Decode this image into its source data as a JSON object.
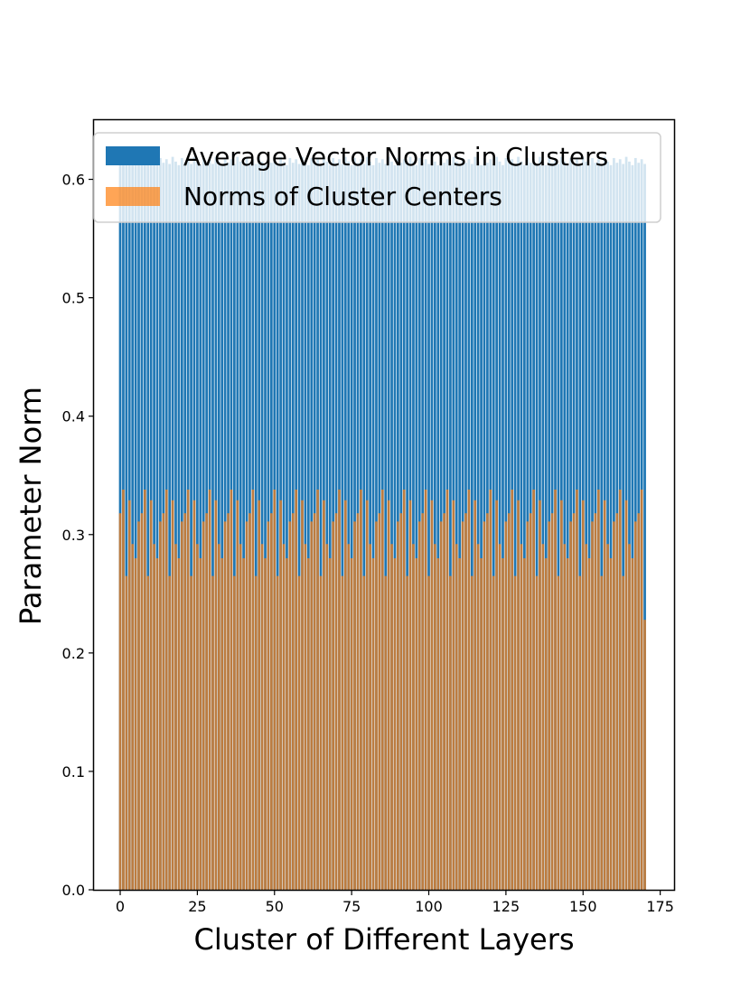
{
  "chart_data": {
    "type": "bar",
    "title": "",
    "xlabel": "Cluster of Different Layers",
    "ylabel": "Parameter Norm",
    "xlim": [
      -8.5,
      179.5
    ],
    "ylim": [
      0,
      0.65
    ],
    "x_ticks": [
      0,
      25,
      50,
      75,
      100,
      125,
      150,
      175
    ],
    "y_ticks": [
      0.0,
      0.1,
      0.2,
      0.3,
      0.4,
      0.5,
      0.6
    ],
    "x_tick_labels": [
      "0",
      "25",
      "50",
      "75",
      "100",
      "125",
      "150",
      "175"
    ],
    "y_tick_labels": [
      "0.0",
      "0.1",
      "0.2",
      "0.3",
      "0.4",
      "0.5",
      "0.6"
    ],
    "legend_position": "upper-left",
    "bar_count": 171,
    "pattern_note": "The figure contains 171 clusters. Average vector norms stay near 0.61-0.62; cluster-center norms repeat a 7-cluster cycle. The last cluster is lower for both series.",
    "series": [
      {
        "name": "Average Vector Norms in Clusters",
        "color": "#1f77b4",
        "alpha": 1.0,
        "pattern": [
          0.614,
          0.617,
          0.613,
          0.619,
          0.615,
          0.612,
          0.618
        ],
        "last_value": 0.613
      },
      {
        "name": "Norms of Cluster Centers",
        "color": "#ff7f0e",
        "alpha": 0.7,
        "pattern": [
          0.318,
          0.338,
          0.265,
          0.329,
          0.292,
          0.28,
          0.311
        ],
        "last_value": 0.228
      }
    ]
  }
}
